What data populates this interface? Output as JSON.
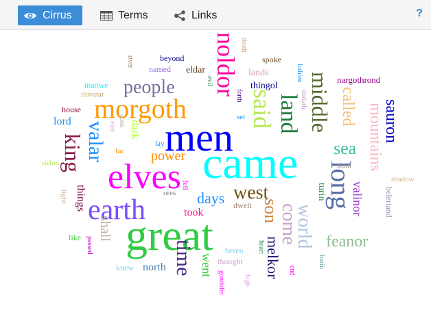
{
  "toolbar": {
    "tabs": [
      {
        "label": "Cirrus",
        "icon": "eye-icon",
        "active": true
      },
      {
        "label": "Terms",
        "icon": "table-icon",
        "active": false
      },
      {
        "label": "Links",
        "icon": "share-icon",
        "active": false
      }
    ],
    "help_label": "?"
  },
  "cloud": {
    "words": [
      {
        "text": "came",
        "color": "#00ffff"
      },
      {
        "text": "men",
        "color": "#0000ff"
      },
      {
        "text": "great",
        "color": "#2ecc40"
      },
      {
        "text": "elves",
        "color": "#ff00ff"
      },
      {
        "text": "morgoth",
        "color": "#ff9900"
      },
      {
        "text": "earth",
        "color": "#7a4dff"
      },
      {
        "text": "noldor",
        "color": "#ff0099"
      },
      {
        "text": "said",
        "color": "#b5e853"
      },
      {
        "text": "land",
        "color": "#1a7a3a"
      },
      {
        "text": "middle",
        "color": "#556b2f"
      },
      {
        "text": "long",
        "color": "#5a6fa8"
      },
      {
        "text": "west",
        "color": "#6b4f10"
      },
      {
        "text": "people",
        "color": "#7b6fa0"
      },
      {
        "text": "valar",
        "color": "#1e90ff"
      },
      {
        "text": "king",
        "color": "#8b1a4a"
      },
      {
        "text": "time",
        "color": "#4b2a8a"
      },
      {
        "text": "son",
        "color": "#cd853f"
      },
      {
        "text": "come",
        "color": "#c8a2c8"
      },
      {
        "text": "world",
        "color": "#b0c4de"
      },
      {
        "text": "mountains",
        "color": "#ffb6c1"
      },
      {
        "text": "called",
        "color": "#f4c27a"
      },
      {
        "text": "sauron",
        "color": "#0000cd"
      },
      {
        "text": "sea",
        "color": "#40c0a0"
      },
      {
        "text": "feanor",
        "color": "#8fbc8f"
      },
      {
        "text": "melkor",
        "color": "#191970"
      },
      {
        "text": "shall",
        "color": "#c0b0a0"
      },
      {
        "text": "days",
        "color": "#1e90ff"
      },
      {
        "text": "power",
        "color": "#ff8c00"
      },
      {
        "text": "valinor",
        "color": "#9932cc"
      },
      {
        "text": "went",
        "color": "#32cd32"
      },
      {
        "text": "took",
        "color": "#ff1493"
      },
      {
        "text": "north",
        "color": "#4682b4"
      },
      {
        "text": "things",
        "color": "#800040"
      },
      {
        "text": "dark",
        "color": "#adff2f"
      },
      {
        "text": "turin",
        "color": "#2e8b57"
      },
      {
        "text": "eldar",
        "color": "#5a3a1a"
      },
      {
        "text": "lands",
        "color": "#d8a0a0"
      },
      {
        "text": "thingol",
        "color": "#00008b"
      },
      {
        "text": "lord",
        "color": "#1e90ff"
      },
      {
        "text": "nargothrond",
        "color": "#8b0080"
      },
      {
        "text": "beyond",
        "color": "#00008b"
      },
      {
        "text": "named",
        "color": "#9370db"
      },
      {
        "text": "spoke",
        "color": "#6b4a20"
      },
      {
        "text": "house",
        "color": "#8b0a3a"
      },
      {
        "text": "dwelt",
        "color": "#a08070"
      },
      {
        "text": "beleriand",
        "color": "#9090b0"
      },
      {
        "text": "shadow",
        "color": "#d2b48c"
      },
      {
        "text": "slain",
        "color": "#a0a0a0"
      },
      {
        "text": "beren",
        "color": "#87ceeb"
      },
      {
        "text": "thought",
        "color": "#c8a2c8"
      },
      {
        "text": "knew",
        "color": "#87ceeb"
      },
      {
        "text": "like",
        "color": "#32cd32"
      },
      {
        "text": "manwe",
        "color": "#00ffff"
      },
      {
        "text": "iluvatar",
        "color": "#c8a060"
      },
      {
        "text": "sirion",
        "color": "#b5e853"
      },
      {
        "text": "far",
        "color": "#ff8c00"
      },
      {
        "text": "lay",
        "color": "#1e90ff"
      },
      {
        "text": "set",
        "color": "#1e90ff"
      },
      {
        "text": "sons",
        "color": "#b0b0b0"
      },
      {
        "text": "east",
        "color": "#dda0dd"
      },
      {
        "text": "fell",
        "color": "#ff00ff"
      },
      {
        "text": "ores",
        "color": "#808080"
      },
      {
        "text": "light",
        "color": "#c8b090"
      },
      {
        "text": "passed",
        "color": "#c000c0"
      },
      {
        "text": "death",
        "color": "#c8a080"
      },
      {
        "text": "river",
        "color": "#a08060"
      },
      {
        "text": "evil",
        "color": "#2e8b57"
      },
      {
        "text": "forth",
        "color": "#4b0082"
      },
      {
        "text": "luthien",
        "color": "#1e90ff"
      },
      {
        "text": "doriath",
        "color": "#c8a2c8"
      },
      {
        "text": "heart",
        "color": "#2e8b57"
      },
      {
        "text": "end",
        "color": "#ff00ff"
      },
      {
        "text": "hurin",
        "color": "#5f9ea0"
      },
      {
        "text": "high",
        "color": "#dda0dd"
      },
      {
        "text": "gondolin",
        "color": "#ff00ff"
      }
    ]
  }
}
